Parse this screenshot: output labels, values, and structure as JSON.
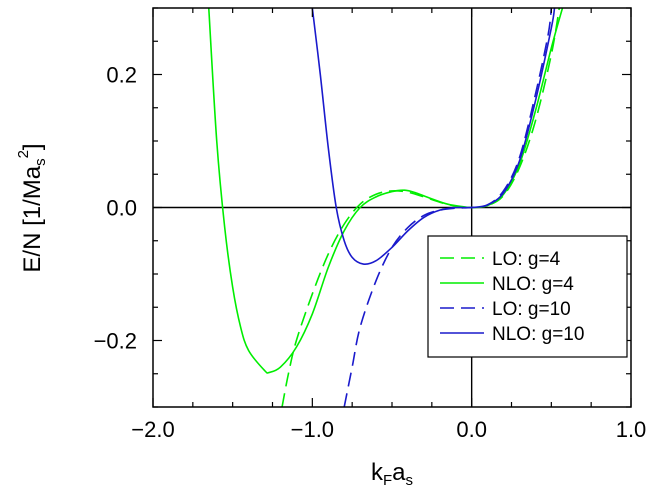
{
  "chart_data": {
    "type": "line",
    "xlabel": {
      "main": "k",
      "sub1": "F",
      "mid": "a",
      "sub2": "s"
    },
    "ylabel": {
      "main": "E/N [1/Ma",
      "sub": "s",
      "sup": "2",
      "end": "]"
    },
    "xlim": [
      -2.0,
      1.0
    ],
    "ylim": [
      -0.3,
      0.3
    ],
    "x_ticks": [
      {
        "value": -2.0,
        "label": "−2.0"
      },
      {
        "value": -1.0,
        "label": "−1.0"
      },
      {
        "value": 0.0,
        "label": "0.0"
      },
      {
        "value": 1.0,
        "label": "1.0"
      }
    ],
    "y_ticks": [
      {
        "value": -0.2,
        "label": "−0.2"
      },
      {
        "value": 0.0,
        "label": "0.0"
      },
      {
        "value": 0.2,
        "label": "0.2"
      }
    ],
    "grid": false,
    "legend_position": "bottom-right",
    "series": [
      {
        "name": "LO: g=4",
        "color": "#00ee00",
        "dash": true,
        "points": [
          [
            -1.19,
            -0.3
          ],
          [
            -1.15,
            -0.25
          ],
          [
            -1.1,
            -0.2
          ],
          [
            -1.0,
            -0.13
          ],
          [
            -0.9,
            -0.07
          ],
          [
            -0.8,
            -0.025
          ],
          [
            -0.7,
            0.005
          ],
          [
            -0.6,
            0.02
          ],
          [
            -0.5,
            0.025
          ],
          [
            -0.4,
            0.023
          ],
          [
            -0.3,
            0.016
          ],
          [
            -0.2,
            0.008
          ],
          [
            -0.1,
            0.002
          ],
          [
            0.0,
            0.0
          ],
          [
            0.1,
            0.003
          ],
          [
            0.2,
            0.018
          ],
          [
            0.3,
            0.06
          ],
          [
            0.4,
            0.13
          ],
          [
            0.5,
            0.23
          ],
          [
            0.55,
            0.3
          ]
        ]
      },
      {
        "name": "NLO: g=4",
        "color": "#00ee00",
        "dash": false,
        "points": [
          [
            -1.65,
            0.3
          ],
          [
            -1.6,
            0.1
          ],
          [
            -1.55,
            -0.03
          ],
          [
            -1.5,
            -0.12
          ],
          [
            -1.45,
            -0.18
          ],
          [
            -1.4,
            -0.215
          ],
          [
            -1.3,
            -0.245
          ],
          [
            -1.27,
            -0.248
          ],
          [
            -1.2,
            -0.24
          ],
          [
            -1.1,
            -0.21
          ],
          [
            -1.0,
            -0.16
          ],
          [
            -0.9,
            -0.09
          ],
          [
            -0.8,
            -0.035
          ],
          [
            -0.7,
            0.0
          ],
          [
            -0.6,
            0.016
          ],
          [
            -0.5,
            0.024
          ],
          [
            -0.42,
            0.026
          ],
          [
            -0.35,
            0.022
          ],
          [
            -0.25,
            0.013
          ],
          [
            -0.15,
            0.005
          ],
          [
            -0.05,
            0.001
          ],
          [
            0.0,
            0.0
          ],
          [
            0.1,
            0.003
          ],
          [
            0.2,
            0.02
          ],
          [
            0.3,
            0.065
          ],
          [
            0.4,
            0.145
          ],
          [
            0.5,
            0.24
          ],
          [
            0.57,
            0.3
          ]
        ]
      },
      {
        "name": "LO: g=10",
        "color": "#1a1acc",
        "dash": true,
        "points": [
          [
            -0.8,
            -0.3
          ],
          [
            -0.75,
            -0.24
          ],
          [
            -0.7,
            -0.18
          ],
          [
            -0.6,
            -0.11
          ],
          [
            -0.5,
            -0.06
          ],
          [
            -0.4,
            -0.03
          ],
          [
            -0.3,
            -0.012
          ],
          [
            -0.2,
            -0.004
          ],
          [
            -0.1,
            -0.001
          ],
          [
            0.0,
            0.0
          ],
          [
            0.1,
            0.004
          ],
          [
            0.2,
            0.025
          ],
          [
            0.3,
            0.075
          ],
          [
            0.4,
            0.17
          ],
          [
            0.48,
            0.26
          ],
          [
            0.5,
            0.3
          ]
        ]
      },
      {
        "name": "NLO: g=10",
        "color": "#1a1acc",
        "dash": false,
        "points": [
          [
            -1.0,
            0.3
          ],
          [
            -0.95,
            0.2
          ],
          [
            -0.9,
            0.09
          ],
          [
            -0.85,
            0.0
          ],
          [
            -0.8,
            -0.05
          ],
          [
            -0.75,
            -0.075
          ],
          [
            -0.68,
            -0.085
          ],
          [
            -0.6,
            -0.08
          ],
          [
            -0.5,
            -0.06
          ],
          [
            -0.4,
            -0.035
          ],
          [
            -0.3,
            -0.015
          ],
          [
            -0.2,
            -0.004
          ],
          [
            -0.1,
            0.0
          ],
          [
            0.0,
            0.0
          ],
          [
            0.1,
            0.004
          ],
          [
            0.2,
            0.022
          ],
          [
            0.3,
            0.07
          ],
          [
            0.4,
            0.16
          ],
          [
            0.5,
            0.27
          ],
          [
            0.52,
            0.3
          ]
        ]
      }
    ]
  }
}
